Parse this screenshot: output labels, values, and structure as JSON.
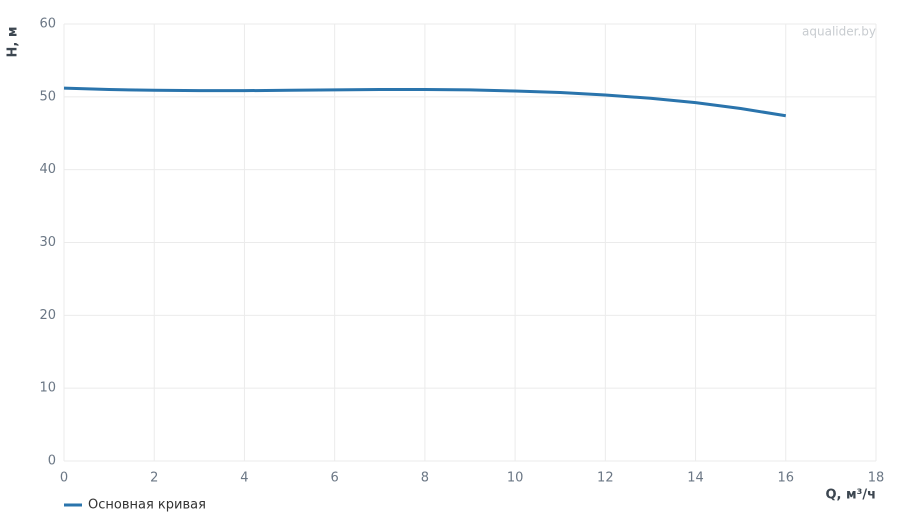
{
  "chart_data": {
    "type": "line",
    "x_label": "Q, м³/ч",
    "y_label": "H, м",
    "watermark": "aqualider.by",
    "x": [
      0,
      1,
      2,
      3,
      4,
      5,
      6,
      7,
      8,
      9,
      10,
      11,
      12,
      13,
      14,
      15,
      16
    ],
    "series": [
      {
        "name": "Основная кривая",
        "color": "#2a74ac",
        "values": [
          51.2,
          51.0,
          50.9,
          50.85,
          50.85,
          50.9,
          50.95,
          51.0,
          51.0,
          50.95,
          50.8,
          50.6,
          50.25,
          49.8,
          49.2,
          48.4,
          47.4
        ]
      }
    ],
    "xlim": [
      0,
      18
    ],
    "xticks": [
      0,
      2,
      4,
      6,
      8,
      10,
      12,
      14,
      16,
      18
    ],
    "ylim": [
      0,
      60
    ],
    "yticks": [
      0,
      10,
      20,
      30,
      40,
      50,
      60
    ],
    "grid": true
  }
}
